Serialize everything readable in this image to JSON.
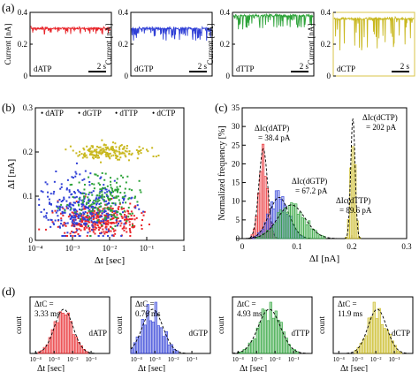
{
  "panel_labels": {
    "a": "(a)",
    "b": "(b)",
    "c": "(c)",
    "d": "(d)"
  },
  "colors": {
    "dATP": "#e8262b",
    "dGTP": "#2f3fd6",
    "dTTP": "#2ea33a",
    "dCTP": "#c9b81f",
    "fit": "#000000",
    "edge_a": "#d9c44a"
  },
  "chart_data": [
    {
      "panel": "a",
      "type": "line",
      "ylabel": "Current [nA]",
      "ylim": [
        0,
        0.4
      ],
      "yticks": [
        "0",
        "0.2",
        "0.4"
      ],
      "scale_bar": "2 s",
      "traces": [
        {
          "name": "dATP",
          "baseline": 0.3,
          "blockade_depth": 0.04,
          "spike_density": 0.25
        },
        {
          "name": "dGTP",
          "baseline": 0.3,
          "blockade_depth": 0.08,
          "spike_density": 0.35
        },
        {
          "name": "dTTP",
          "baseline": 0.38,
          "blockade_depth": 0.09,
          "spike_density": 0.35
        },
        {
          "name": "dCTP",
          "baseline": 0.36,
          "blockade_depth": 0.2,
          "spike_density": 0.12
        }
      ]
    },
    {
      "panel": "b",
      "type": "scatter",
      "xlabel": "Δt [sec]",
      "ylabel": "ΔI [nA]",
      "xscale": "log",
      "xlim": [
        0.0001,
        1
      ],
      "ylim": [
        0,
        0.3
      ],
      "xticks": [
        "10⁻⁴",
        "10⁻³",
        "10⁻²",
        "10⁻¹",
        "1"
      ],
      "yticks": [
        "0",
        "0.1",
        "0.2",
        "0.3"
      ],
      "legend_placement": "top",
      "series": [
        {
          "name": "dATP",
          "dI_center": 0.045,
          "dI_spread": 0.018,
          "logdt_center": -2.3,
          "logdt_spread": 0.55,
          "count": 340
        },
        {
          "name": "dGTP",
          "dI_center": 0.075,
          "dI_spread": 0.035,
          "logdt_center": -2.7,
          "logdt_spread": 0.55,
          "count": 320
        },
        {
          "name": "dTTP",
          "dI_center": 0.09,
          "dI_spread": 0.028,
          "logdt_center": -2.1,
          "logdt_spread": 0.5,
          "count": 180
        },
        {
          "name": "dCTP",
          "dI_center": 0.2,
          "dI_spread": 0.008,
          "logdt_center": -2.0,
          "logdt_spread": 0.45,
          "count": 180
        }
      ]
    },
    {
      "panel": "c",
      "type": "bar",
      "xlabel": "ΔI [nA]",
      "ylabel": "Normalized frequency [%]",
      "xlim": [
        0,
        0.3
      ],
      "ylim": [
        0,
        35
      ],
      "xticks": [
        "0",
        "0.1",
        "0.2",
        "0.3"
      ],
      "yticks": [
        "0",
        "5",
        "10",
        "15",
        "20",
        "25",
        "30",
        "35"
      ],
      "series": [
        {
          "name": "dATP",
          "annotation": "ΔIc(dATP) = 38.4 pA",
          "peak": 0.0384,
          "sigma": 0.008,
          "height": 24
        },
        {
          "name": "dGTP",
          "annotation": "ΔIc(dGTP) = 67.2 pA",
          "peak": 0.0672,
          "sigma": 0.018,
          "height": 11
        },
        {
          "name": "dTTP",
          "annotation": "ΔIc(dTTP) = 89.6 pA",
          "peak": 0.0896,
          "sigma": 0.025,
          "height": 9
        },
        {
          "name": "dCTP",
          "annotation": "ΔIc(dCTP) = 202 pA",
          "peak": 0.202,
          "sigma": 0.004,
          "height": 32
        }
      ]
    },
    {
      "panel": "d",
      "type": "bar",
      "xlabel": "Δt [sec]",
      "ylabel": "count",
      "xscale": "log",
      "xticks": [
        "10⁻⁴",
        "10⁻³",
        "10⁻²",
        "10⁻¹"
      ],
      "histograms": [
        {
          "name": "dATP",
          "tc_label": "ΔtC =",
          "tc_value": "3.33 ms",
          "logdt_peak": -2.48,
          "sigma": 0.5
        },
        {
          "name": "dGTP",
          "tc_label": "ΔtC =",
          "tc_value": "0.76 ms",
          "logdt_peak": -3.12,
          "sigma": 0.55
        },
        {
          "name": "dTTP",
          "tc_label": "ΔtC =",
          "tc_value": "4.93 ms",
          "logdt_peak": -2.31,
          "sigma": 0.6
        },
        {
          "name": "dCTP",
          "tc_label": "ΔtC =",
          "tc_value": "11.9 ms",
          "logdt_peak": -1.92,
          "sigma": 0.5
        }
      ]
    }
  ]
}
